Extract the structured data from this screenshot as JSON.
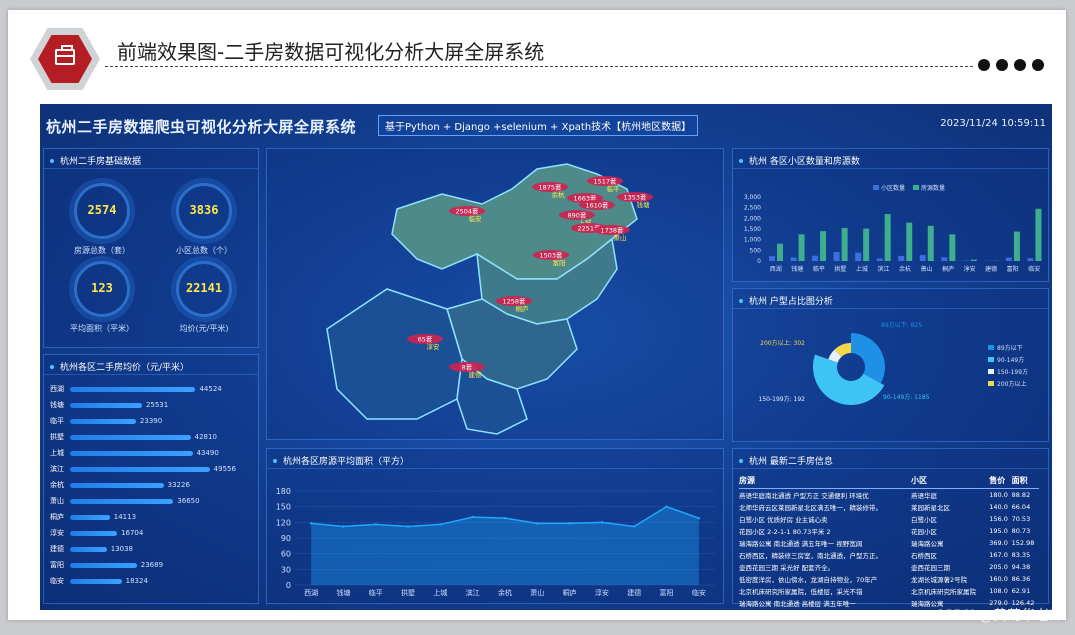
{
  "doc": {
    "title": "前端效果图-二手房数据可视化分析大屏全屏系统",
    "watermark": "CSDN @黄菊华老师"
  },
  "header": {
    "title": "杭州二手房数据爬虫可视化分析大屏全屏系统",
    "subtitle": "基于Python + Django +selenium + Xpath技术【杭州地区数据】",
    "datetime": "2023/11/24 10:59:11"
  },
  "stats": {
    "title": "杭州二手房基础数据",
    "items": [
      {
        "value": "2574",
        "label": "房源总数（套）"
      },
      {
        "value": "3836",
        "label": "小区总数（个）"
      },
      {
        "value": "123",
        "label": "平均面积（平米）"
      },
      {
        "value": "22141",
        "label": "均价(元/平米)"
      }
    ]
  },
  "price_panel": {
    "title": "杭州各区二手房均价（元/平米）",
    "max": 55000,
    "rows": [
      {
        "name": "西湖",
        "value": 44524.0
      },
      {
        "name": "钱塘",
        "value": 25531.0
      },
      {
        "name": "临平",
        "value": 23390.0
      },
      {
        "name": "拱墅",
        "value": 42810.0
      },
      {
        "name": "上城",
        "value": 43490.0
      },
      {
        "name": "滨江",
        "value": 49556.0
      },
      {
        "name": "余杭",
        "value": 33226.0
      },
      {
        "name": "萧山",
        "value": 36650.0
      },
      {
        "name": "桐庐",
        "value": 14113.0
      },
      {
        "name": "淳安",
        "value": 16704.0
      },
      {
        "name": "建德",
        "value": 13038.0
      },
      {
        "name": "富阳",
        "value": 23689.0
      },
      {
        "name": "临安",
        "value": 18324.0
      }
    ]
  },
  "map": {
    "markers": [
      {
        "count": "1517套",
        "district": "临平"
      },
      {
        "count": "1875套",
        "district": "余杭"
      },
      {
        "count": "1353套",
        "district": "钱塘"
      },
      {
        "count": "1663套",
        "district": ""
      },
      {
        "count": "1610套",
        "district": ""
      },
      {
        "count": "2504套",
        "district": "临安"
      },
      {
        "count": "890套",
        "district": "上城"
      },
      {
        "count": "2251套",
        "district": ""
      },
      {
        "count": "1738套",
        "district": "萧山"
      },
      {
        "count": "1503套",
        "district": "富阳"
      },
      {
        "count": "1258套",
        "district": "桐庐"
      },
      {
        "count": "65套",
        "district": "淳安"
      },
      {
        "count": "8套",
        "district": "建德"
      }
    ]
  },
  "colors": {
    "community": "#3b6fe0",
    "listing": "#3fae8f",
    "line": "#1ea8ff"
  },
  "chart_data": [
    {
      "type": "bar",
      "title": "杭州 各区小区数量和房源数",
      "categories": [
        "西湖",
        "钱塘",
        "临平",
        "拱墅",
        "上城",
        "滨江",
        "余杭",
        "萧山",
        "桐庐",
        "淳安",
        "建德",
        "富阳",
        "临安"
      ],
      "series": [
        {
          "name": "小区数量",
          "values": [
            230,
            160,
            250,
            420,
            390,
            120,
            240,
            280,
            170,
            20,
            10,
            160,
            130
          ]
        },
        {
          "name": "房源数量",
          "values": [
            810,
            1250,
            1400,
            1550,
            1520,
            2200,
            1800,
            1650,
            1250,
            60,
            10,
            1380,
            2450
          ]
        }
      ],
      "ylim": [
        0,
        3000
      ],
      "yticks": [
        "3,000",
        "2,500",
        "2,000",
        "1,500",
        "1,000",
        "500",
        "0"
      ]
    },
    {
      "type": "pie",
      "title": "杭州 户型占比图分析",
      "slices": [
        {
          "name": "89方以下",
          "value": 825,
          "color": "#1e90e6"
        },
        {
          "name": "90-149方",
          "value": 1185,
          "color": "#3ec3f5"
        },
        {
          "name": "150-199方",
          "value": 192,
          "color": "#e6f0ff"
        },
        {
          "name": "200方以上",
          "value": 302,
          "color": "#f5d84a"
        }
      ],
      "labels": [
        "89方以下: 825",
        "90-149方: 1185",
        "150-199方: 192",
        "200方以上: 302"
      ]
    },
    {
      "type": "area",
      "title": "杭州各区房源平均面积（平方）",
      "categories": [
        "西湖",
        "钱塘",
        "临平",
        "拱墅",
        "上城",
        "滨江",
        "余杭",
        "萧山",
        "桐庐",
        "淳安",
        "建德",
        "富阳",
        "临安"
      ],
      "values": [
        118,
        112,
        116,
        112,
        116,
        130,
        128,
        118,
        118,
        120,
        112,
        150,
        128
      ],
      "ylim": [
        0,
        180
      ],
      "yticks": [
        "180",
        "150",
        "120",
        "90",
        "60",
        "30",
        "0"
      ]
    }
  ],
  "listing_panel": {
    "title": "杭州 最新二手房信息",
    "headers": [
      "房源",
      "小区",
      "售价",
      "面积"
    ],
    "rows": [
      [
        "燕语华庭南北通透 户型方正 交通便利 环境优",
        "燕语华庭",
        "180.0",
        "88.82"
      ],
      [
        "北师华府云区莱园新星北区满五唯一，精装修带。",
        "莱园新星北区",
        "140.0",
        "66.04"
      ],
      [
        "白鹭小区 优质好房 业主诚心卖",
        "白鹭小区",
        "156.0",
        "70.53"
      ],
      [
        "花园小区 2-2-1-1 80.73平米 2",
        "花园小区",
        "195.0",
        "80.73"
      ],
      [
        "瑞海路公寓 南北通透 满五年唯一 视野宽阔",
        "瑞海路公寓",
        "369.0",
        "152.98"
      ],
      [
        "石桥西区，精装修三房室，南北通透，户型方正。",
        "石桥西区",
        "167.0",
        "83.35"
      ],
      [
        "壶西花园三期 采光好 配套齐全。",
        "壶西花园三期",
        "205.0",
        "94.38"
      ],
      [
        "低密度洋房，依山傍水，龙湖自持物业，70年产",
        "龙湖长城源著2号院",
        "160.0",
        "86.36"
      ],
      [
        "北京机床研究所家属院，低楼层，采光不错",
        "北京机床研究所家属院",
        "108.0",
        "62.91"
      ],
      [
        "瑞海路公寓 南北通透 高楼层 满五年唯一",
        "瑞海路公寓",
        "279.0",
        "126.42"
      ]
    ]
  }
}
